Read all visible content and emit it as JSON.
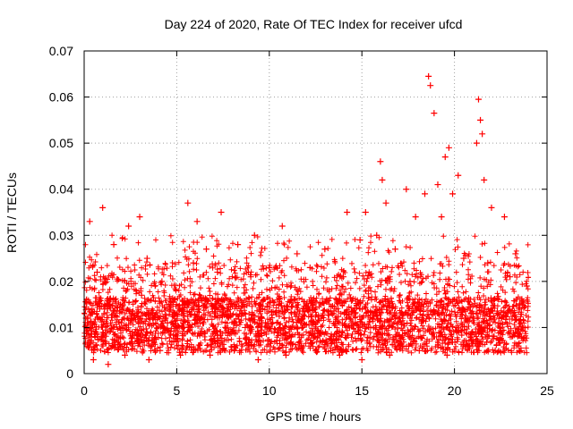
{
  "chart_data": {
    "type": "scatter",
    "title": "Day 224 of 2020, Rate Of TEC Index for receiver ufcd",
    "xlabel": "GPS time / hours",
    "ylabel": "ROTI / TECUs",
    "xlim": [
      0,
      25
    ],
    "ylim": [
      0,
      0.07
    ],
    "x_ticks": [
      0,
      5,
      10,
      15,
      20,
      25
    ],
    "x_tick_labels": [
      "0",
      "5",
      "10",
      "15",
      "20",
      "25"
    ],
    "y_ticks": [
      0,
      0.01,
      0.02,
      0.03,
      0.04,
      0.05,
      0.06,
      0.07
    ],
    "y_tick_labels": [
      "0",
      "0.01",
      "0.02",
      "0.03",
      "0.04",
      "0.05",
      "0.06",
      "0.07"
    ],
    "grid": true,
    "legend": "none",
    "marker": "+",
    "color": "#ff0000",
    "series": [
      {
        "name": "ROTI",
        "x": [
          0.2,
          0.3,
          0.4,
          0.7,
          1.0,
          1.1,
          1.6,
          2.0,
          2.4,
          2.6,
          3.0,
          3.1,
          3.4,
          3.7,
          4.2,
          4.5,
          4.9,
          5.4,
          5.6,
          5.9,
          6.1,
          6.3,
          6.6,
          7.0,
          7.2,
          7.4,
          7.9,
          8.3,
          8.7,
          9.0,
          9.2,
          9.6,
          10.0,
          10.4,
          10.7,
          11.2,
          11.5,
          11.8,
          12.2,
          12.8,
          13.0,
          13.6,
          14.0,
          14.2,
          14.5,
          14.9,
          15.2,
          15.6,
          15.8,
          16.0,
          16.1,
          16.3,
          16.8,
          17.0,
          17.4,
          17.6,
          17.9,
          18.2,
          18.4,
          18.6,
          18.7,
          18.9,
          19.1,
          19.3,
          19.5,
          19.7,
          19.9,
          20.2,
          20.5,
          20.9,
          21.2,
          21.3,
          21.4,
          21.5,
          21.6,
          21.8,
          22.0,
          22.4,
          22.7,
          23.0,
          23.3,
          23.6,
          23.9,
          0.5,
          1.3,
          2.2,
          3.5,
          4.1,
          5.2,
          6.8,
          8.1,
          9.4,
          10.9,
          12.5,
          13.8,
          15.0,
          16.5,
          17.2,
          18.1,
          19.6,
          20.7,
          22.2,
          23.5
        ],
        "values": [
          0.012,
          0.033,
          0.01,
          0.022,
          0.036,
          0.014,
          0.028,
          0.011,
          0.032,
          0.009,
          0.034,
          0.017,
          0.025,
          0.012,
          0.02,
          0.011,
          0.016,
          0.01,
          0.037,
          0.024,
          0.033,
          0.012,
          0.027,
          0.009,
          0.022,
          0.035,
          0.013,
          0.028,
          0.01,
          0.021,
          0.03,
          0.012,
          0.023,
          0.011,
          0.032,
          0.013,
          0.026,
          0.01,
          0.023,
          0.012,
          0.027,
          0.014,
          0.021,
          0.035,
          0.011,
          0.029,
          0.035,
          0.013,
          0.03,
          0.046,
          0.042,
          0.037,
          0.027,
          0.012,
          0.04,
          0.02,
          0.034,
          0.014,
          0.039,
          0.0645,
          0.0625,
          0.0565,
          0.041,
          0.034,
          0.047,
          0.049,
          0.039,
          0.043,
          0.025,
          0.013,
          0.05,
          0.0595,
          0.055,
          0.052,
          0.042,
          0.024,
          0.036,
          0.012,
          0.034,
          0.021,
          0.026,
          0.011,
          0.019,
          0.003,
          0.002,
          0.004,
          0.003,
          0.005,
          0.004,
          0.004,
          0.005,
          0.003,
          0.004,
          0.005,
          0.004,
          0.003,
          0.004,
          0.006,
          0.005,
          0.004,
          0.006,
          0.005,
          0.005
        ]
      }
    ]
  }
}
